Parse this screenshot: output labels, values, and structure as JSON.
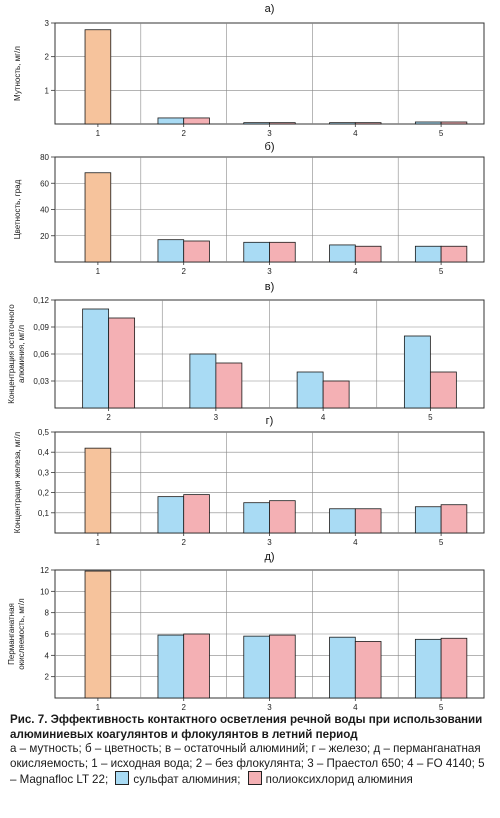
{
  "colors": {
    "initial": "#f6c39c",
    "sulfate": "#a9dbf4",
    "polyoxy": "#f4b0b4",
    "grid": "#888888",
    "frame": "#333333"
  },
  "chart_data": [
    {
      "type": "bar",
      "title": "а)",
      "ylabel": "Мутность, мг/л",
      "categories": [
        "1",
        "2",
        "3",
        "4",
        "5"
      ],
      "ylim": [
        0,
        3
      ],
      "yticks": [
        1,
        2,
        3
      ],
      "yticklabels": [
        "1",
        "2",
        "3"
      ],
      "series": [
        {
          "name": "исходная вода",
          "values": [
            2.8,
            null,
            null,
            null,
            null
          ]
        },
        {
          "name": "сульфат алюминия",
          "values": [
            null,
            0.18,
            0.04,
            0.04,
            0.06
          ]
        },
        {
          "name": "полиоксихлорид алюминия",
          "values": [
            null,
            0.18,
            0.04,
            0.04,
            0.06
          ]
        }
      ]
    },
    {
      "type": "bar",
      "title": "б)",
      "ylabel": "Цветность, град",
      "categories": [
        "1",
        "2",
        "3",
        "4",
        "5"
      ],
      "ylim": [
        0,
        80
      ],
      "yticks": [
        20,
        40,
        60,
        80
      ],
      "yticklabels": [
        "20",
        "40",
        "60",
        "80"
      ],
      "series": [
        {
          "name": "исходная вода",
          "values": [
            68,
            null,
            null,
            null,
            null
          ]
        },
        {
          "name": "сульфат алюминия",
          "values": [
            null,
            17,
            15,
            13,
            12
          ]
        },
        {
          "name": "полиоксихлорид алюминия",
          "values": [
            null,
            16,
            15,
            12,
            12
          ]
        }
      ]
    },
    {
      "type": "bar",
      "title": "в)",
      "ylabel": "Концентрация остаточного алюминия, мг/л",
      "categories": [
        "2",
        "3",
        "4",
        "5"
      ],
      "ylim": [
        0,
        0.12
      ],
      "yticks": [
        0.03,
        0.06,
        0.09,
        0.12
      ],
      "yticklabels": [
        "0,03",
        "0,06",
        "0,09",
        "0,12"
      ],
      "series": [
        {
          "name": "сульфат алюминия",
          "values": [
            0.11,
            0.06,
            0.04,
            0.08
          ]
        },
        {
          "name": "полиоксихлорид алюминия",
          "values": [
            0.1,
            0.05,
            0.03,
            0.04
          ]
        }
      ]
    },
    {
      "type": "bar",
      "title": "г)",
      "ylabel": "Концентрация железа, мг/л",
      "categories": [
        "1",
        "2",
        "3",
        "4",
        "5"
      ],
      "ylim": [
        0,
        0.5
      ],
      "yticks": [
        0.1,
        0.2,
        0.3,
        0.4,
        0.5
      ],
      "yticklabels": [
        "0,1",
        "0,2",
        "0,3",
        "0,4",
        "0,5"
      ],
      "series": [
        {
          "name": "исходная вода",
          "values": [
            0.42,
            null,
            null,
            null,
            null
          ]
        },
        {
          "name": "сульфат алюминия",
          "values": [
            null,
            0.18,
            0.15,
            0.12,
            0.13
          ]
        },
        {
          "name": "полиоксихлорид алюминия",
          "values": [
            null,
            0.19,
            0.16,
            0.12,
            0.14
          ]
        }
      ]
    },
    {
      "type": "bar",
      "title": "д)",
      "ylabel": "Перманганатная окисляемость, мг/л",
      "categories": [
        "1",
        "2",
        "3",
        "4",
        "5"
      ],
      "ylim": [
        0,
        12
      ],
      "yticks": [
        2,
        4,
        6,
        8,
        10,
        12
      ],
      "yticklabels": [
        "2",
        "4",
        "6",
        "8",
        "10",
        "12"
      ],
      "series": [
        {
          "name": "исходная вода",
          "values": [
            11.9,
            null,
            null,
            null,
            null
          ]
        },
        {
          "name": "сульфат алюминия",
          "values": [
            null,
            5.9,
            5.8,
            5.7,
            5.5
          ]
        },
        {
          "name": "полиоксихлорид алюминия",
          "values": [
            null,
            6.0,
            5.9,
            5.3,
            5.6
          ]
        }
      ]
    }
  ],
  "caption": {
    "title": "Рис. 7. Эффективность контактного осветления речной воды при использовании алюминиевых коагулянтов и флокулянтов в летний период",
    "body": "а – мутность; б – цветность; в – остаточный алюминий; г – железо; д – перманганатная окисляемость; 1 – исходная вода; 2 – без флокулянта; 3 – Праестол 650; 4 – FO 4140; 5 – Magnafloc LT 22;",
    "legend_sulfate": "сульфат алюминия;",
    "legend_polyoxy": "полиоксихлорид алюминия"
  }
}
